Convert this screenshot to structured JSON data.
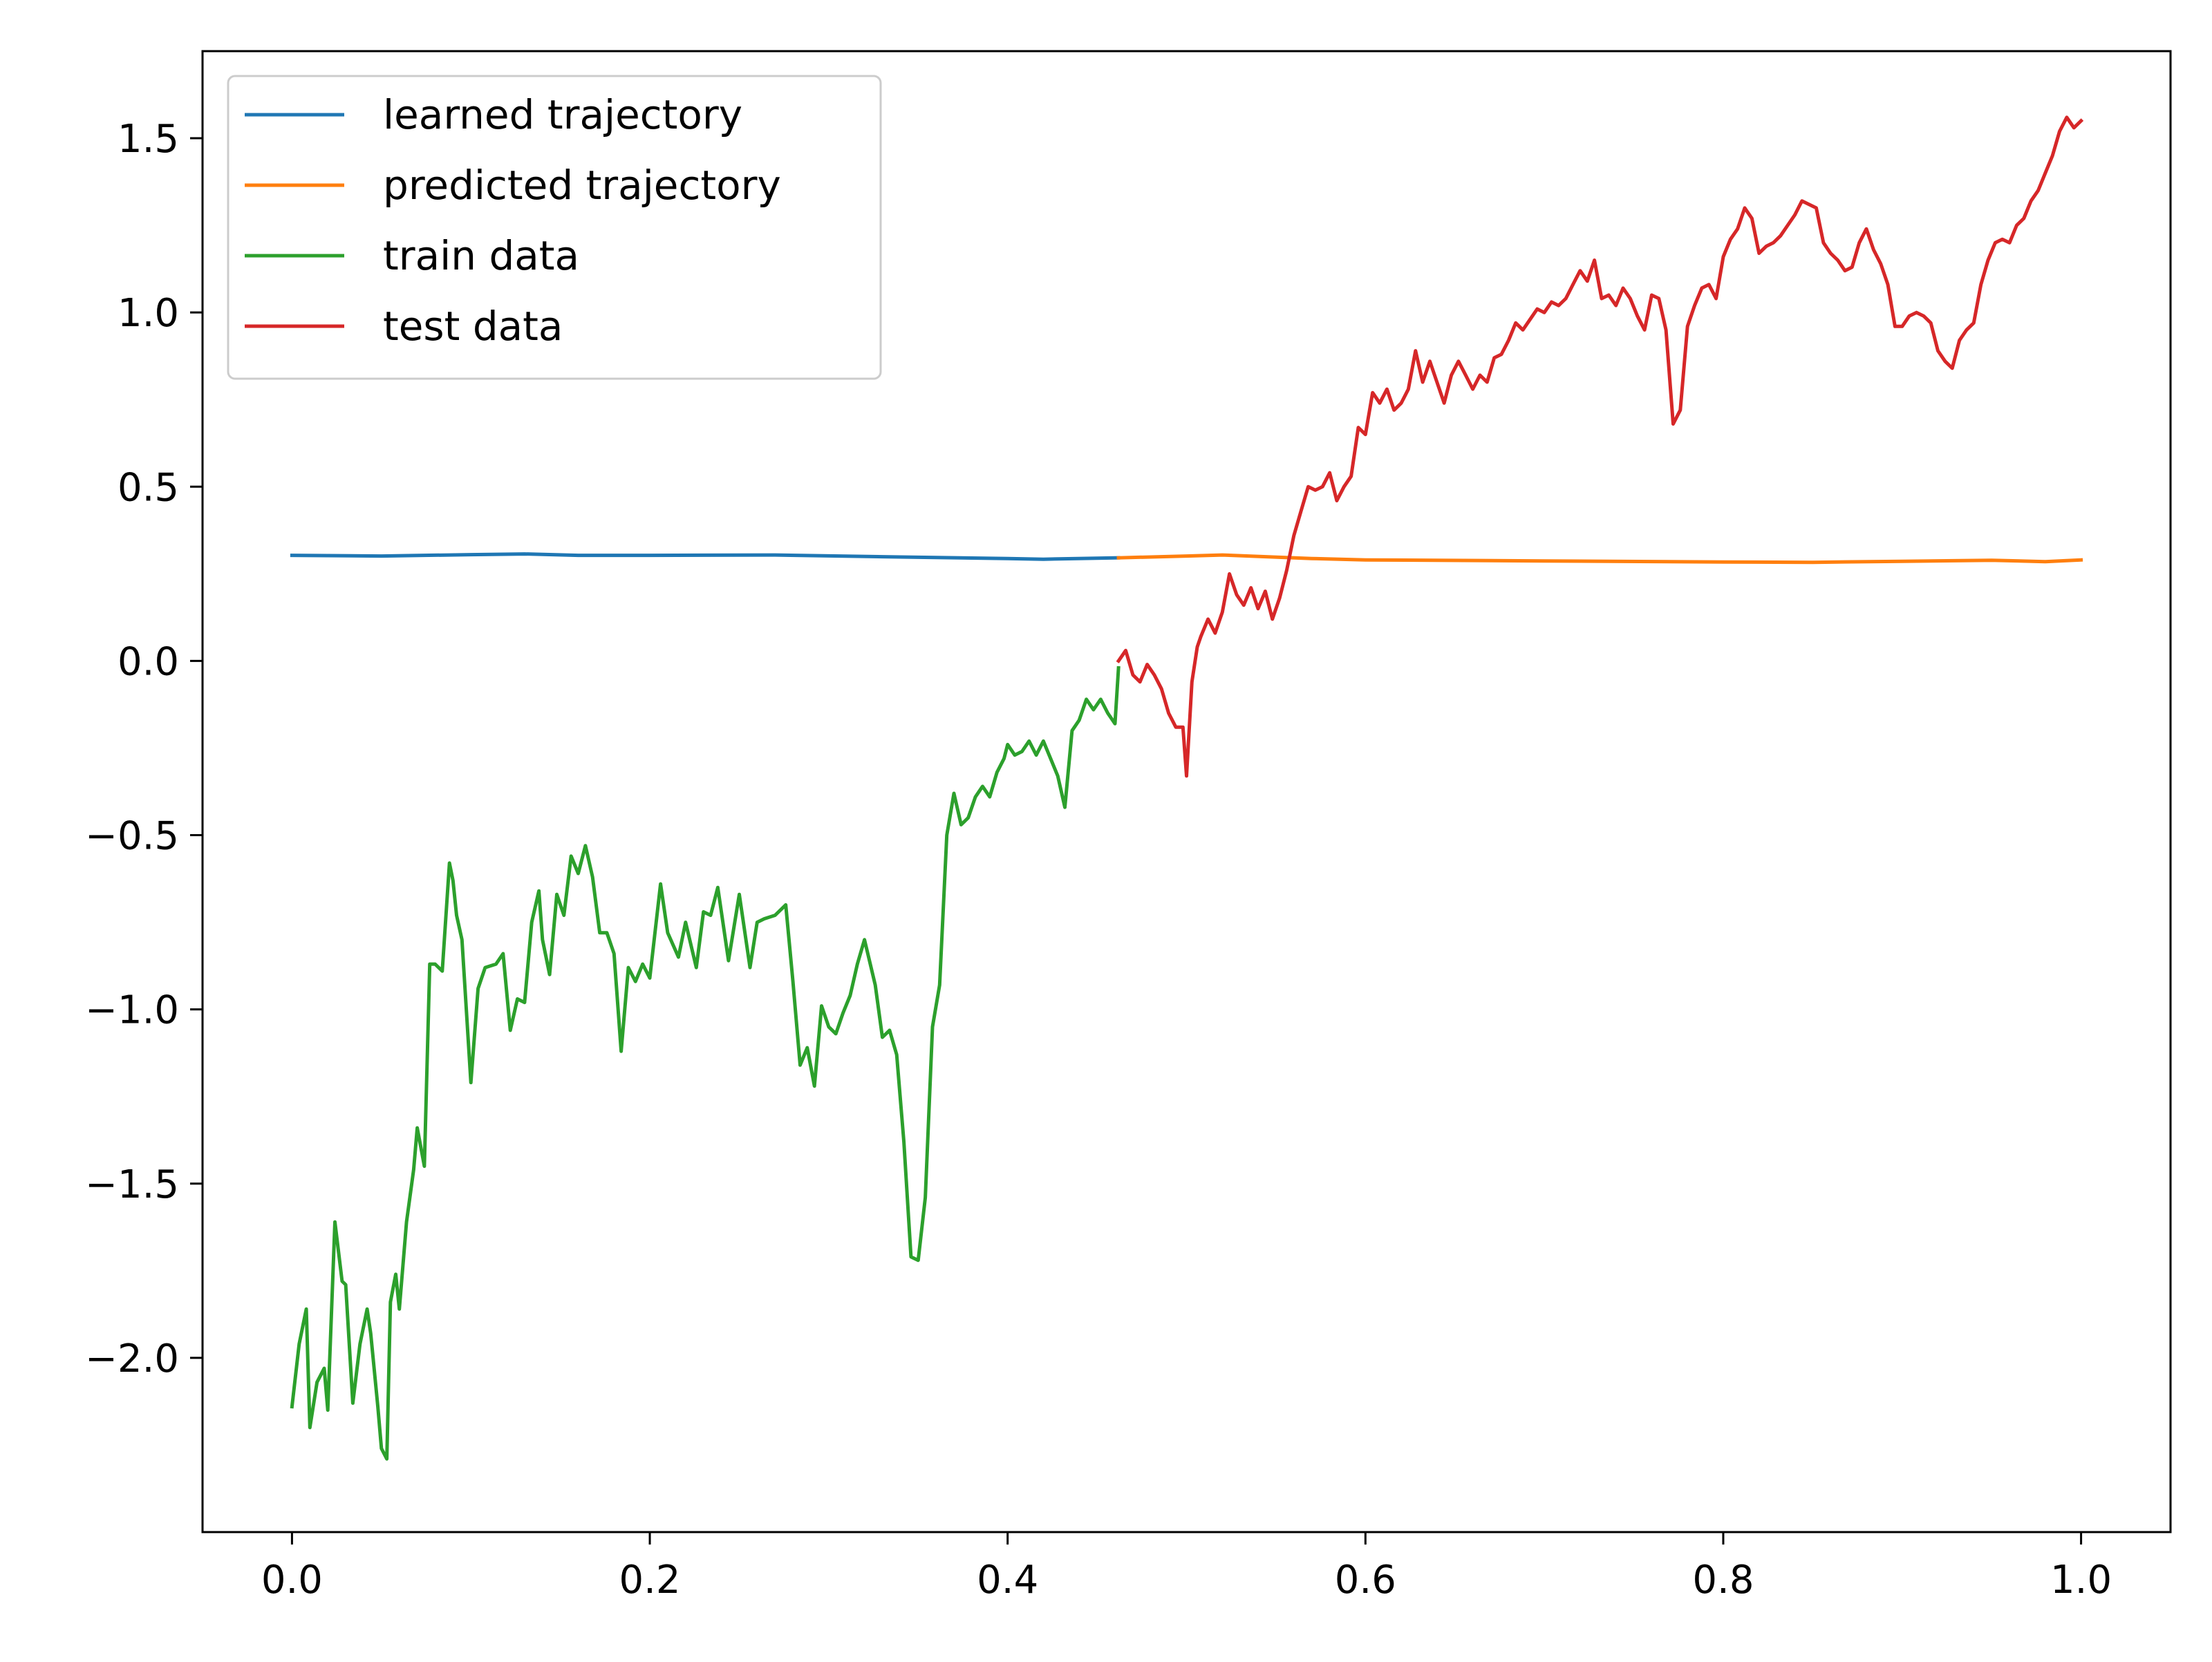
{
  "chart_data": {
    "type": "line",
    "title": "",
    "xlabel": "",
    "ylabel": "",
    "xlim": [
      -0.05,
      1.05
    ],
    "ylim": [
      -2.5,
      1.75
    ],
    "xticks": [
      0.0,
      0.2,
      0.4,
      0.6,
      0.8,
      1.0
    ],
    "xtick_labels": [
      "0.0",
      "0.2",
      "0.4",
      "0.6",
      "0.8",
      "1.0"
    ],
    "yticks": [
      1.5,
      1.0,
      0.5,
      0.0,
      -0.5,
      -1.0,
      -1.5,
      -2.0
    ],
    "ytick_labels": [
      "1.5",
      "1.0",
      "0.5",
      "0.0",
      "−0.5",
      "−1.0",
      "−1.5",
      "−2.0"
    ],
    "grid": false,
    "legend_position": "top-left",
    "series": [
      {
        "name": "learned trajectory",
        "color": "#1f77b4",
        "x": [
          0.0,
          0.05,
          0.1,
          0.13,
          0.16,
          0.2,
          0.27,
          0.33,
          0.4,
          0.42,
          0.45,
          0.462
        ],
        "y": [
          0.303,
          0.301,
          0.305,
          0.307,
          0.303,
          0.303,
          0.304,
          0.299,
          0.294,
          0.292,
          0.295,
          0.296
        ]
      },
      {
        "name": "predicted trajectory",
        "color": "#ff7f0e",
        "x": [
          0.462,
          0.5,
          0.52,
          0.57,
          0.6,
          0.7,
          0.8,
          0.85,
          0.9,
          0.95,
          0.98,
          1.0
        ],
        "y": [
          0.296,
          0.301,
          0.304,
          0.294,
          0.29,
          0.287,
          0.284,
          0.283,
          0.286,
          0.289,
          0.285,
          0.29
        ]
      },
      {
        "name": "train data",
        "color": "#2ca02c",
        "x": [
          0.0,
          0.004,
          0.008,
          0.01,
          0.014,
          0.018,
          0.02,
          0.024,
          0.028,
          0.03,
          0.034,
          0.038,
          0.042,
          0.044,
          0.048,
          0.05,
          0.053,
          0.055,
          0.058,
          0.06,
          0.064,
          0.068,
          0.07,
          0.074,
          0.077,
          0.08,
          0.084,
          0.088,
          0.09,
          0.092,
          0.095,
          0.1,
          0.104,
          0.108,
          0.114,
          0.118,
          0.122,
          0.126,
          0.13,
          0.134,
          0.138,
          0.14,
          0.144,
          0.148,
          0.152,
          0.156,
          0.16,
          0.164,
          0.168,
          0.172,
          0.176,
          0.18,
          0.184,
          0.188,
          0.192,
          0.196,
          0.2,
          0.206,
          0.21,
          0.216,
          0.22,
          0.226,
          0.23,
          0.234,
          0.238,
          0.244,
          0.25,
          0.256,
          0.26,
          0.264,
          0.27,
          0.276,
          0.28,
          0.284,
          0.288,
          0.292,
          0.296,
          0.3,
          0.304,
          0.308,
          0.312,
          0.316,
          0.32,
          0.326,
          0.33,
          0.334,
          0.338,
          0.342,
          0.346,
          0.35,
          0.354,
          0.358,
          0.362,
          0.366,
          0.37,
          0.374,
          0.378,
          0.382,
          0.386,
          0.39,
          0.394,
          0.398,
          0.4,
          0.404,
          0.408,
          0.412,
          0.416,
          0.42,
          0.424,
          0.428,
          0.432,
          0.436,
          0.44,
          0.444,
          0.448,
          0.452,
          0.456,
          0.46,
          0.462
        ],
        "y": [
          -2.14,
          -1.96,
          -1.86,
          -2.2,
          -2.07,
          -2.03,
          -2.15,
          -1.61,
          -1.78,
          -1.79,
          -2.13,
          -1.96,
          -1.86,
          -1.93,
          -2.14,
          -2.26,
          -2.29,
          -1.84,
          -1.76,
          -1.86,
          -1.61,
          -1.46,
          -1.34,
          -1.45,
          -0.87,
          -0.87,
          -0.89,
          -0.58,
          -0.63,
          -0.73,
          -0.8,
          -1.21,
          -0.94,
          -0.88,
          -0.87,
          -0.84,
          -1.06,
          -0.97,
          -0.98,
          -0.75,
          -0.66,
          -0.8,
          -0.9,
          -0.67,
          -0.73,
          -0.56,
          -0.61,
          -0.53,
          -0.62,
          -0.78,
          -0.78,
          -0.84,
          -1.12,
          -0.88,
          -0.92,
          -0.87,
          -0.91,
          -0.64,
          -0.78,
          -0.85,
          -0.75,
          -0.88,
          -0.72,
          -0.73,
          -0.65,
          -0.86,
          -0.67,
          -0.88,
          -0.75,
          -0.74,
          -0.73,
          -0.7,
          -0.92,
          -1.16,
          -1.11,
          -1.22,
          -0.99,
          -1.05,
          -1.07,
          -1.01,
          -0.96,
          -0.87,
          -0.8,
          -0.93,
          -1.08,
          -1.06,
          -1.13,
          -1.38,
          -1.71,
          -1.72,
          -1.54,
          -1.05,
          -0.93,
          -0.5,
          -0.38,
          -0.47,
          -0.45,
          -0.39,
          -0.36,
          -0.39,
          -0.32,
          -0.28,
          -0.24,
          -0.27,
          -0.26,
          -0.23,
          -0.27,
          -0.23,
          -0.28,
          -0.33,
          -0.42,
          -0.2,
          -0.17,
          -0.11,
          -0.14,
          -0.11,
          -0.15,
          -0.18,
          -0.02
        ]
      },
      {
        "name": "test data",
        "color": "#d62728",
        "x": [
          0.462,
          0.466,
          0.47,
          0.474,
          0.478,
          0.482,
          0.486,
          0.49,
          0.494,
          0.498,
          0.5,
          0.503,
          0.506,
          0.508,
          0.512,
          0.516,
          0.52,
          0.524,
          0.528,
          0.532,
          0.536,
          0.54,
          0.544,
          0.548,
          0.552,
          0.556,
          0.56,
          0.564,
          0.568,
          0.572,
          0.576,
          0.58,
          0.584,
          0.588,
          0.592,
          0.596,
          0.6,
          0.604,
          0.608,
          0.612,
          0.616,
          0.62,
          0.624,
          0.628,
          0.632,
          0.636,
          0.64,
          0.644,
          0.648,
          0.652,
          0.656,
          0.66,
          0.664,
          0.668,
          0.672,
          0.676,
          0.68,
          0.684,
          0.688,
          0.692,
          0.696,
          0.7,
          0.704,
          0.708,
          0.712,
          0.716,
          0.72,
          0.724,
          0.728,
          0.732,
          0.736,
          0.74,
          0.744,
          0.748,
          0.752,
          0.756,
          0.76,
          0.764,
          0.768,
          0.772,
          0.776,
          0.78,
          0.784,
          0.788,
          0.792,
          0.796,
          0.8,
          0.804,
          0.808,
          0.812,
          0.816,
          0.82,
          0.824,
          0.828,
          0.832,
          0.836,
          0.84,
          0.844,
          0.848,
          0.852,
          0.856,
          0.86,
          0.864,
          0.868,
          0.872,
          0.876,
          0.88,
          0.884,
          0.888,
          0.892,
          0.896,
          0.9,
          0.904,
          0.908,
          0.912,
          0.916,
          0.92,
          0.924,
          0.928,
          0.932,
          0.936,
          0.94,
          0.944,
          0.948,
          0.952,
          0.956,
          0.96,
          0.964,
          0.968,
          0.972,
          0.976,
          0.98,
          0.984,
          0.988,
          0.992,
          0.996,
          1.0
        ],
        "y": [
          0.0,
          0.03,
          -0.04,
          -0.06,
          -0.01,
          -0.04,
          -0.08,
          -0.15,
          -0.19,
          -0.19,
          -0.33,
          -0.06,
          0.04,
          0.07,
          0.12,
          0.08,
          0.14,
          0.25,
          0.19,
          0.16,
          0.21,
          0.15,
          0.2,
          0.12,
          0.18,
          0.26,
          0.36,
          0.43,
          0.5,
          0.49,
          0.5,
          0.54,
          0.46,
          0.5,
          0.53,
          0.67,
          0.65,
          0.77,
          0.74,
          0.78,
          0.72,
          0.74,
          0.78,
          0.89,
          0.8,
          0.86,
          0.8,
          0.74,
          0.82,
          0.86,
          0.82,
          0.78,
          0.82,
          0.8,
          0.87,
          0.88,
          0.92,
          0.97,
          0.95,
          0.98,
          1.01,
          1.0,
          1.03,
          1.02,
          1.04,
          1.08,
          1.12,
          1.09,
          1.15,
          1.04,
          1.05,
          1.02,
          1.07,
          1.04,
          0.99,
          0.95,
          1.05,
          1.04,
          0.95,
          0.68,
          0.72,
          0.96,
          1.02,
          1.07,
          1.08,
          1.04,
          1.16,
          1.21,
          1.24,
          1.3,
          1.27,
          1.17,
          1.19,
          1.2,
          1.22,
          1.25,
          1.28,
          1.32,
          1.31,
          1.3,
          1.2,
          1.17,
          1.15,
          1.12,
          1.13,
          1.2,
          1.24,
          1.18,
          1.14,
          1.08,
          0.96,
          0.96,
          0.99,
          1.0,
          0.99,
          0.97,
          0.89,
          0.86,
          0.84,
          0.92,
          0.95,
          0.97,
          1.08,
          1.15,
          1.2,
          1.21,
          1.2,
          1.25,
          1.27,
          1.32,
          1.35,
          1.4,
          1.45,
          1.52,
          1.56,
          1.53,
          1.55
        ]
      }
    ]
  }
}
